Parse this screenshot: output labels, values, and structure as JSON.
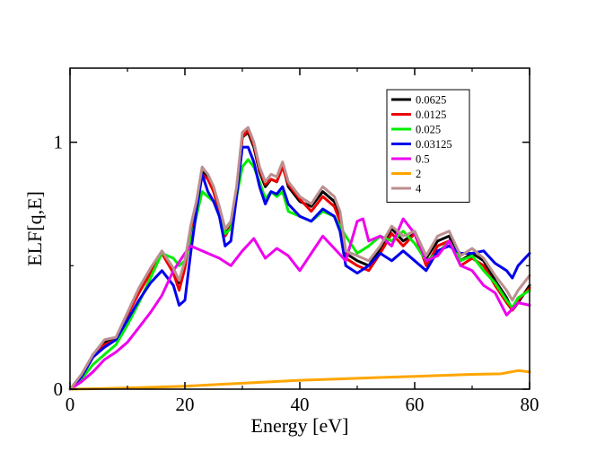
{
  "chart_data": {
    "type": "line",
    "xlabel": "Energy [eV]",
    "ylabel": "ELF[q,E]",
    "xlim": [
      0,
      80
    ],
    "ylim": [
      0,
      1.3
    ],
    "xticks": [
      0,
      20,
      40,
      60,
      80
    ],
    "xtick_labels": [
      "0",
      "20",
      "40",
      "60",
      "80"
    ],
    "yticks": [
      0,
      1
    ],
    "ytick_labels": [
      "0",
      "1"
    ],
    "grid": false,
    "legend_position": "top-right",
    "series": [
      {
        "name": "0.0625",
        "color": "#000000",
        "x": [
          0,
          2,
          4,
          6,
          8,
          10,
          12,
          14,
          16,
          18,
          19,
          20,
          21,
          22,
          23,
          24,
          25,
          26,
          27,
          28,
          29,
          30,
          31,
          32,
          33,
          34,
          35,
          36,
          37,
          38,
          40,
          42,
          44,
          46,
          47,
          48,
          50,
          52,
          54,
          56,
          58,
          60,
          62,
          64,
          66,
          68,
          70,
          72,
          74,
          76,
          77,
          78,
          80
        ],
        "y": [
          0,
          0.05,
          0.14,
          0.19,
          0.2,
          0.3,
          0.4,
          0.48,
          0.55,
          0.48,
          0.43,
          0.5,
          0.65,
          0.74,
          0.88,
          0.86,
          0.8,
          0.72,
          0.63,
          0.66,
          0.8,
          1.02,
          1.04,
          0.98,
          0.88,
          0.82,
          0.85,
          0.84,
          0.91,
          0.82,
          0.76,
          0.74,
          0.8,
          0.76,
          0.7,
          0.55,
          0.52,
          0.5,
          0.57,
          0.65,
          0.6,
          0.63,
          0.53,
          0.6,
          0.62,
          0.52,
          0.55,
          0.52,
          0.44,
          0.37,
          0.32,
          0.35,
          0.42
        ]
      },
      {
        "name": "0.0125",
        "color": "#ee0000",
        "x": [
          0,
          2,
          4,
          6,
          8,
          10,
          12,
          14,
          16,
          18,
          19,
          20,
          21,
          22,
          23,
          24,
          25,
          26,
          27,
          28,
          29,
          30,
          31,
          32,
          33,
          34,
          35,
          36,
          37,
          38,
          40,
          42,
          44,
          46,
          47,
          48,
          50,
          52,
          54,
          56,
          58,
          60,
          62,
          64,
          66,
          68,
          70,
          72,
          74,
          76,
          77,
          78,
          80
        ],
        "y": [
          0,
          0.05,
          0.13,
          0.18,
          0.2,
          0.3,
          0.39,
          0.47,
          0.55,
          0.47,
          0.4,
          0.49,
          0.63,
          0.73,
          0.87,
          0.85,
          0.8,
          0.72,
          0.62,
          0.66,
          0.8,
          1.02,
          1.05,
          0.99,
          0.89,
          0.83,
          0.85,
          0.84,
          0.9,
          0.83,
          0.77,
          0.72,
          0.78,
          0.74,
          0.68,
          0.53,
          0.5,
          0.48,
          0.55,
          0.63,
          0.58,
          0.63,
          0.5,
          0.58,
          0.6,
          0.5,
          0.53,
          0.5,
          0.42,
          0.35,
          0.32,
          0.36,
          0.41
        ]
      },
      {
        "name": "0.025",
        "color": "#00ee00",
        "x": [
          0,
          2,
          4,
          6,
          8,
          10,
          12,
          14,
          16,
          18,
          19,
          20,
          21,
          22,
          23,
          24,
          25,
          26,
          27,
          28,
          29,
          30,
          31,
          32,
          33,
          34,
          35,
          36,
          37,
          38,
          40,
          42,
          44,
          46,
          47,
          48,
          50,
          52,
          54,
          56,
          58,
          60,
          62,
          64,
          66,
          68,
          70,
          72,
          74,
          76,
          77,
          78,
          80
        ],
        "y": [
          0,
          0.04,
          0.1,
          0.14,
          0.18,
          0.26,
          0.35,
          0.45,
          0.55,
          0.53,
          0.5,
          0.52,
          0.6,
          0.7,
          0.8,
          0.78,
          0.76,
          0.7,
          0.63,
          0.65,
          0.78,
          0.9,
          0.93,
          0.9,
          0.84,
          0.77,
          0.8,
          0.78,
          0.8,
          0.72,
          0.7,
          0.68,
          0.72,
          0.7,
          0.66,
          0.62,
          0.55,
          0.58,
          0.62,
          0.6,
          0.64,
          0.59,
          0.52,
          0.55,
          0.6,
          0.52,
          0.54,
          0.48,
          0.43,
          0.36,
          0.33,
          0.37,
          0.4
        ]
      },
      {
        "name": "0.03125",
        "color": "#0000ee",
        "x": [
          0,
          2,
          4,
          6,
          8,
          10,
          12,
          14,
          16,
          18,
          19,
          20,
          21,
          22,
          23,
          24,
          25,
          26,
          27,
          28,
          29,
          30,
          31,
          32,
          33,
          34,
          35,
          36,
          37,
          38,
          40,
          42,
          44,
          46,
          47,
          48,
          50,
          52,
          54,
          56,
          58,
          60,
          62,
          64,
          66,
          68,
          70,
          72,
          74,
          76,
          77,
          78,
          80
        ],
        "y": [
          0,
          0.05,
          0.13,
          0.17,
          0.2,
          0.28,
          0.36,
          0.43,
          0.48,
          0.42,
          0.34,
          0.36,
          0.55,
          0.72,
          0.87,
          0.8,
          0.76,
          0.7,
          0.58,
          0.6,
          0.78,
          0.98,
          0.98,
          0.92,
          0.82,
          0.75,
          0.8,
          0.79,
          0.82,
          0.75,
          0.7,
          0.68,
          0.73,
          0.7,
          0.64,
          0.5,
          0.47,
          0.5,
          0.55,
          0.52,
          0.56,
          0.52,
          0.48,
          0.56,
          0.58,
          0.55,
          0.55,
          0.56,
          0.51,
          0.48,
          0.45,
          0.5,
          0.55
        ]
      },
      {
        "name": "0.5",
        "color": "#ee00ee",
        "x": [
          0,
          2,
          4,
          6,
          8,
          10,
          12,
          14,
          16,
          18,
          20,
          21,
          22,
          24,
          26,
          28,
          30,
          32,
          34,
          36,
          38,
          40,
          42,
          44,
          46,
          48,
          50,
          51,
          52,
          54,
          56,
          58,
          60,
          62,
          64,
          66,
          68,
          70,
          72,
          74,
          76,
          78,
          80
        ],
        "y": [
          0,
          0.03,
          0.07,
          0.12,
          0.15,
          0.19,
          0.25,
          0.31,
          0.38,
          0.48,
          0.55,
          0.58,
          0.57,
          0.55,
          0.53,
          0.5,
          0.56,
          0.61,
          0.53,
          0.57,
          0.54,
          0.48,
          0.55,
          0.62,
          0.57,
          0.52,
          0.68,
          0.69,
          0.6,
          0.62,
          0.58,
          0.69,
          0.63,
          0.52,
          0.54,
          0.6,
          0.5,
          0.48,
          0.42,
          0.39,
          0.3,
          0.35,
          0.34
        ]
      },
      {
        "name": "2",
        "color": "#ffa500",
        "x": [
          0,
          5,
          10,
          15,
          20,
          25,
          30,
          35,
          40,
          45,
          50,
          55,
          60,
          65,
          70,
          75,
          78,
          80
        ],
        "y": [
          0,
          0.002,
          0.005,
          0.008,
          0.012,
          0.018,
          0.024,
          0.03,
          0.036,
          0.04,
          0.044,
          0.048,
          0.052,
          0.056,
          0.06,
          0.062,
          0.075,
          0.07
        ]
      },
      {
        "name": "4",
        "color": "#bc8f8f",
        "x": [
          0,
          2,
          4,
          6,
          8,
          10,
          12,
          14,
          16,
          18,
          19,
          20,
          21,
          22,
          23,
          24,
          25,
          26,
          27,
          28,
          29,
          30,
          31,
          32,
          33,
          34,
          35,
          36,
          37,
          38,
          40,
          42,
          44,
          46,
          47,
          48,
          50,
          52,
          54,
          56,
          58,
          60,
          62,
          64,
          66,
          68,
          70,
          72,
          74,
          76,
          77,
          78,
          80
        ],
        "y": [
          0,
          0.06,
          0.14,
          0.2,
          0.21,
          0.31,
          0.41,
          0.49,
          0.56,
          0.49,
          0.44,
          0.52,
          0.66,
          0.76,
          0.9,
          0.87,
          0.82,
          0.74,
          0.65,
          0.68,
          0.82,
          1.04,
          1.06,
          1.0,
          0.9,
          0.84,
          0.87,
          0.86,
          0.92,
          0.84,
          0.78,
          0.75,
          0.82,
          0.78,
          0.72,
          0.56,
          0.54,
          0.52,
          0.58,
          0.66,
          0.62,
          0.64,
          0.54,
          0.62,
          0.64,
          0.54,
          0.57,
          0.53,
          0.46,
          0.4,
          0.36,
          0.4,
          0.46
        ]
      }
    ]
  }
}
